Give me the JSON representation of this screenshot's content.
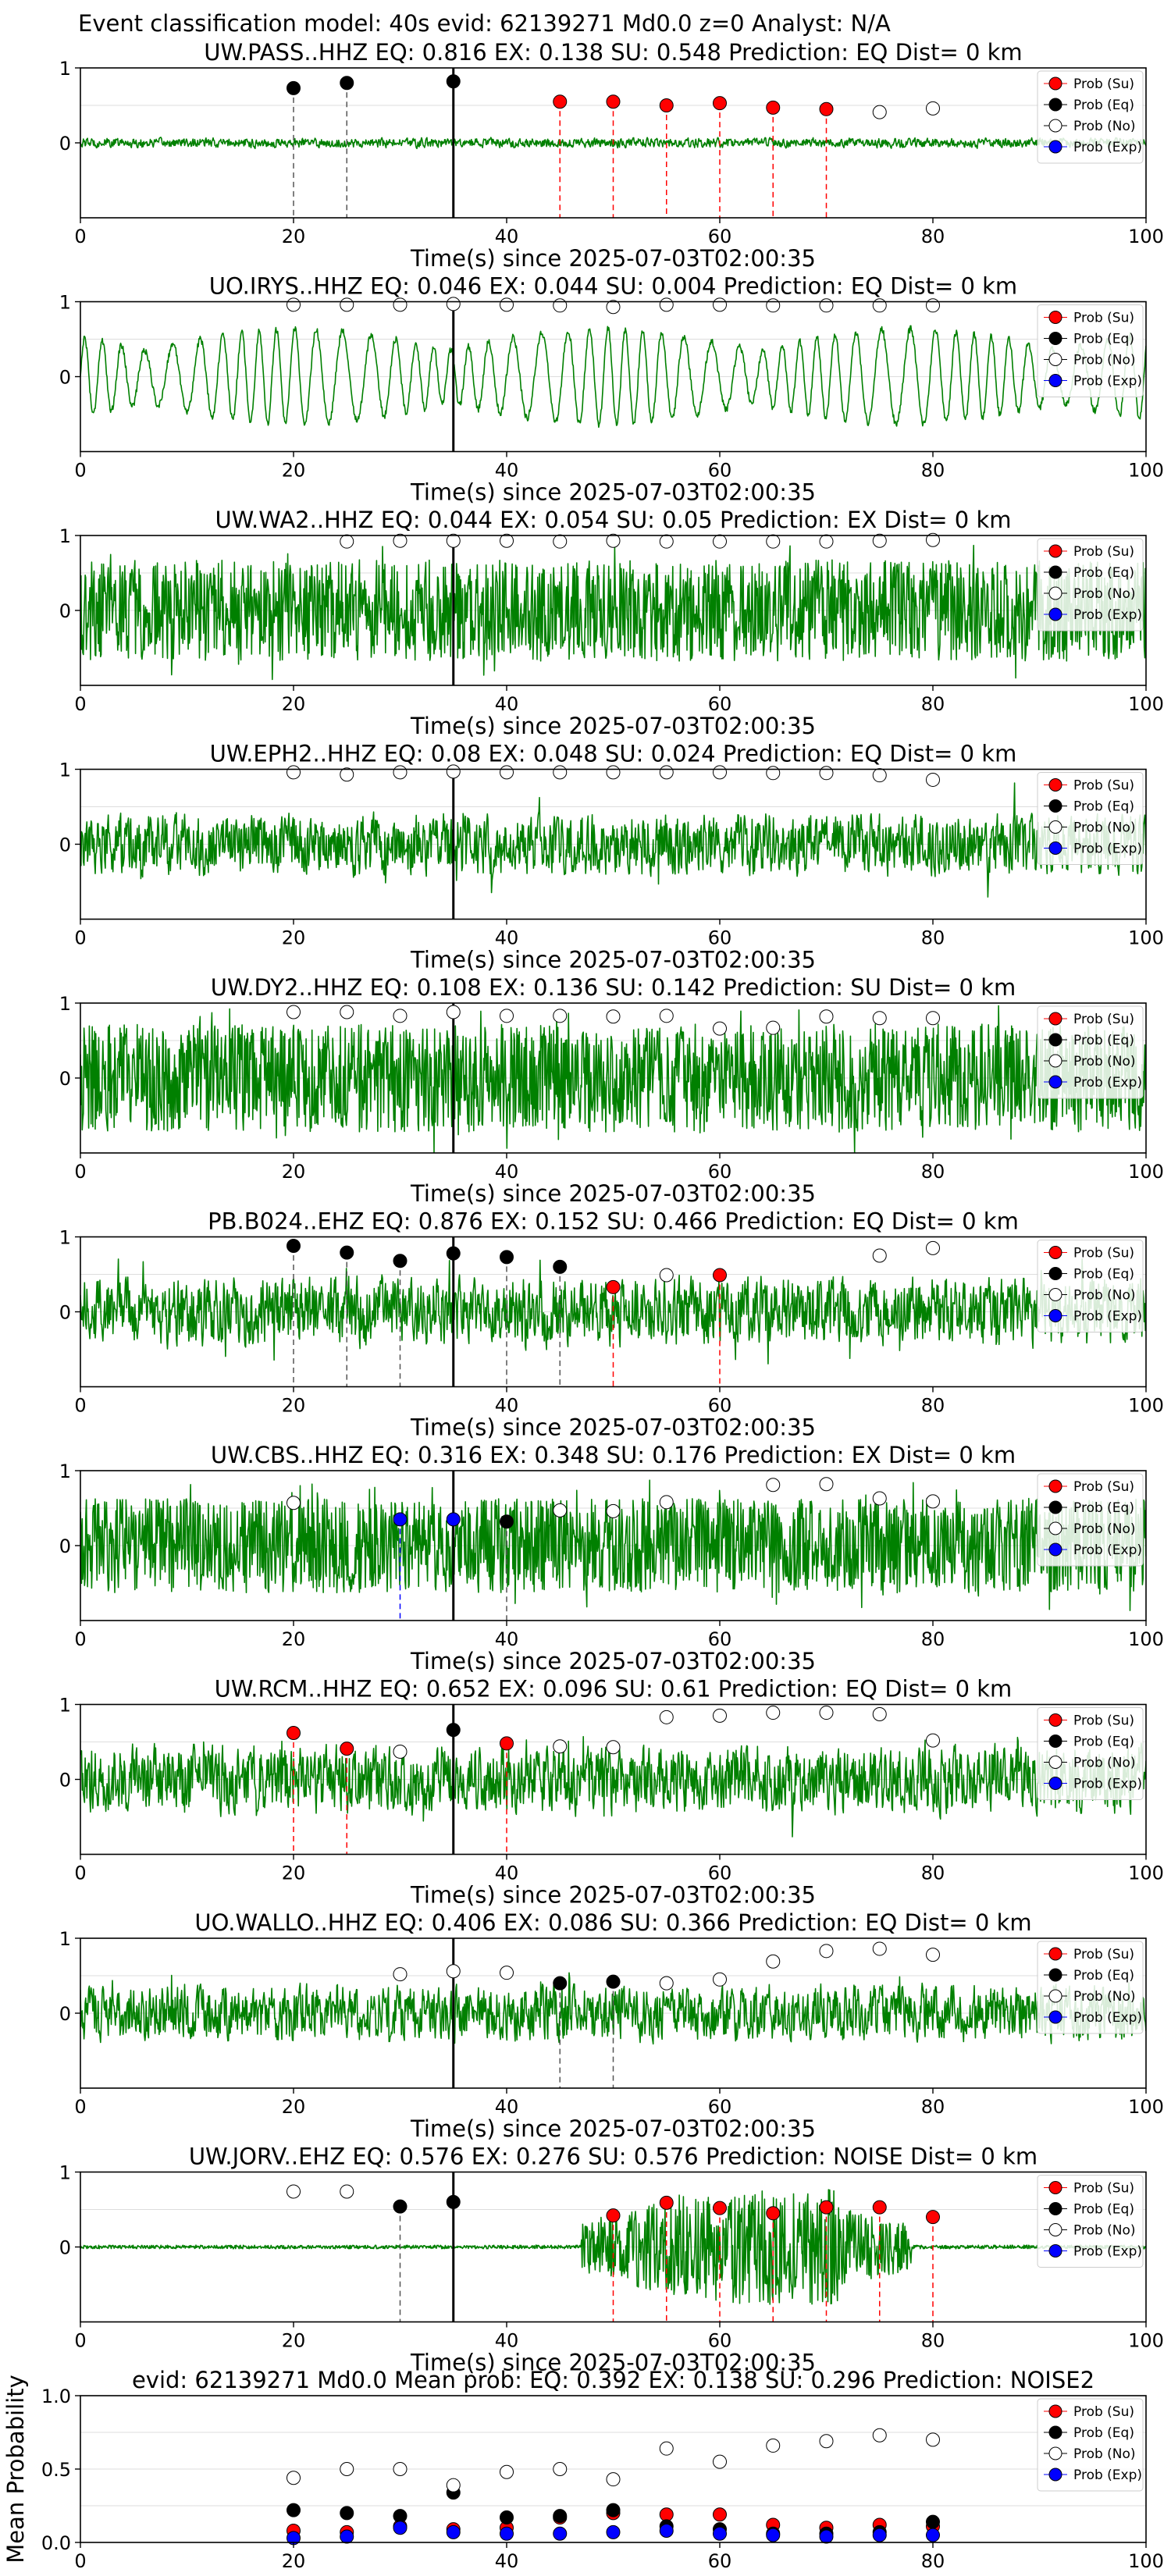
{
  "suptitle": "Event classification model: 40s evid: 62139271 Md0.0 z=0 Analyst: N/A",
  "legend_labels": [
    "Prob (Su)",
    "Prob (Eq)",
    "Prob (No)",
    "Prob (Exp)"
  ],
  "colors": {
    "su": "#ff0000",
    "eq": "#000000",
    "no": "#ffffff",
    "exp": "#0000ff",
    "waveform": "#008000",
    "pick_line": "#000000"
  },
  "chart_data": [
    {
      "type": "line",
      "title": "UW.PASS..HHZ   EQ: 0.816  EX: 0.138  SU: 0.548   Prediction: EQ    Dist= 0 km",
      "xlabel": "Time(s) since 2025-07-03T02:00:35",
      "xlim": [
        0,
        100
      ],
      "ylim": [
        -1,
        1
      ],
      "xticks": [
        0,
        20,
        40,
        60,
        80,
        100
      ],
      "yticks": [
        0,
        1
      ],
      "pick_time": 35,
      "waveform_style": "noise_low",
      "waveform_amplitude": 0.12,
      "series": [
        {
          "name": "Prob (Su)",
          "x": [
            45,
            50,
            55,
            60,
            65,
            70
          ],
          "y": [
            0.55,
            0.55,
            0.5,
            0.53,
            0.47,
            0.45
          ]
        },
        {
          "name": "Prob (Eq)",
          "x": [
            20,
            25,
            35
          ],
          "y": [
            0.73,
            0.8,
            0.82
          ]
        },
        {
          "name": "Prob (No)",
          "x": [
            75,
            80
          ],
          "y": [
            0.41,
            0.46
          ]
        },
        {
          "name": "Prob (Exp)",
          "x": [],
          "y": []
        }
      ]
    },
    {
      "type": "line",
      "title": "UO.IRYS..HHZ   EQ: 0.046  EX: 0.044  SU: 0.004   Prediction: EQ    Dist= 0 km",
      "xlabel": "Time(s) since 2025-07-03T02:00:35",
      "xlim": [
        0,
        100
      ],
      "ylim": [
        -1,
        1
      ],
      "xticks": [
        0,
        20,
        40,
        60,
        80,
        100
      ],
      "yticks": [
        0,
        1
      ],
      "pick_time": 35,
      "waveform_style": "oscillating",
      "waveform_amplitude": 0.75,
      "series": [
        {
          "name": "Prob (Su)",
          "x": [],
          "y": []
        },
        {
          "name": "Prob (Eq)",
          "x": [],
          "y": []
        },
        {
          "name": "Prob (No)",
          "x": [
            20,
            25,
            30,
            35,
            40,
            45,
            50,
            55,
            60,
            65,
            70,
            75,
            80
          ],
          "y": [
            0.96,
            0.96,
            0.96,
            0.97,
            0.96,
            0.95,
            0.93,
            0.96,
            0.96,
            0.95,
            0.95,
            0.95,
            0.95
          ]
        },
        {
          "name": "Prob (Exp)",
          "x": [],
          "y": []
        }
      ]
    },
    {
      "type": "line",
      "title": "UW.WA2..HHZ   EQ: 0.044  EX: 0.054  SU: 0.05   Prediction: EX    Dist= 0 km",
      "xlabel": "Time(s) since 2025-07-03T02:00:35",
      "xlim": [
        0,
        100
      ],
      "ylim": [
        -1,
        1
      ],
      "xticks": [
        0,
        20,
        40,
        60,
        80,
        100
      ],
      "yticks": [
        0,
        1
      ],
      "pick_time": 35,
      "waveform_style": "noise_high",
      "waveform_amplitude": 0.75,
      "series": [
        {
          "name": "Prob (Su)",
          "x": [],
          "y": []
        },
        {
          "name": "Prob (Eq)",
          "x": [],
          "y": []
        },
        {
          "name": "Prob (No)",
          "x": [
            25,
            30,
            35,
            40,
            45,
            50,
            55,
            60,
            65,
            70,
            75,
            80
          ],
          "y": [
            0.92,
            0.93,
            0.93,
            0.93,
            0.92,
            0.93,
            0.92,
            0.92,
            0.92,
            0.92,
            0.93,
            0.94
          ]
        },
        {
          "name": "Prob (Exp)",
          "x": [],
          "y": []
        }
      ]
    },
    {
      "type": "line",
      "title": "UW.EPH2..HHZ   EQ: 0.08  EX: 0.048  SU: 0.024   Prediction: EQ    Dist= 0 km",
      "xlabel": "Time(s) since 2025-07-03T02:00:35",
      "xlim": [
        0,
        100
      ],
      "ylim": [
        -1,
        1
      ],
      "xticks": [
        0,
        20,
        40,
        60,
        80,
        100
      ],
      "yticks": [
        0,
        1
      ],
      "pick_time": 35,
      "waveform_style": "noise_mid",
      "waveform_amplitude": 0.5,
      "series": [
        {
          "name": "Prob (Su)",
          "x": [],
          "y": []
        },
        {
          "name": "Prob (Eq)",
          "x": [],
          "y": []
        },
        {
          "name": "Prob (No)",
          "x": [
            20,
            25,
            30,
            35,
            40,
            45,
            50,
            55,
            60,
            65,
            70,
            75,
            80
          ],
          "y": [
            0.96,
            0.93,
            0.96,
            0.97,
            0.96,
            0.96,
            0.96,
            0.96,
            0.96,
            0.95,
            0.95,
            0.92,
            0.86
          ]
        },
        {
          "name": "Prob (Exp)",
          "x": [],
          "y": []
        }
      ]
    },
    {
      "type": "line",
      "title": "UW.DY2..HHZ   EQ: 0.108  EX: 0.136  SU: 0.142   Prediction: SU    Dist= 0 km",
      "xlabel": "Time(s) since 2025-07-03T02:00:35",
      "xlim": [
        0,
        100
      ],
      "ylim": [
        -1,
        1
      ],
      "xticks": [
        0,
        20,
        40,
        60,
        80,
        100
      ],
      "yticks": [
        0,
        1
      ],
      "pick_time": 35,
      "waveform_style": "noise_high",
      "waveform_amplitude": 0.8,
      "series": [
        {
          "name": "Prob (Su)",
          "x": [],
          "y": []
        },
        {
          "name": "Prob (Eq)",
          "x": [],
          "y": []
        },
        {
          "name": "Prob (No)",
          "x": [
            20,
            25,
            30,
            35,
            40,
            45,
            50,
            55,
            60,
            65,
            70,
            75,
            80
          ],
          "y": [
            0.88,
            0.88,
            0.83,
            0.88,
            0.83,
            0.83,
            0.82,
            0.83,
            0.66,
            0.67,
            0.82,
            0.8,
            0.8
          ]
        },
        {
          "name": "Prob (Exp)",
          "x": [],
          "y": []
        }
      ]
    },
    {
      "type": "line",
      "title": "PB.B024..EHZ   EQ: 0.876  EX: 0.152  SU: 0.466   Prediction: EQ    Dist= 0 km",
      "xlabel": "Time(s) since 2025-07-03T02:00:35",
      "xlim": [
        0,
        100
      ],
      "ylim": [
        -1,
        1
      ],
      "xticks": [
        0,
        20,
        40,
        60,
        80,
        100
      ],
      "yticks": [
        0,
        1
      ],
      "pick_time": 35,
      "waveform_style": "noise_mid",
      "waveform_amplitude": 0.55,
      "series": [
        {
          "name": "Prob (Su)",
          "x": [
            50,
            60
          ],
          "y": [
            0.33,
            0.49
          ]
        },
        {
          "name": "Prob (Eq)",
          "x": [
            20,
            25,
            30,
            35,
            40,
            45
          ],
          "y": [
            0.88,
            0.79,
            0.68,
            0.78,
            0.73,
            0.6
          ]
        },
        {
          "name": "Prob (No)",
          "x": [
            55,
            75,
            80
          ],
          "y": [
            0.49,
            0.75,
            0.85
          ]
        },
        {
          "name": "Prob (Exp)",
          "x": [],
          "y": []
        }
      ]
    },
    {
      "type": "line",
      "title": "UW.CBS..HHZ   EQ: 0.316  EX: 0.348  SU: 0.176   Prediction: EX    Dist= 0 km",
      "xlabel": "Time(s) since 2025-07-03T02:00:35",
      "xlim": [
        0,
        100
      ],
      "ylim": [
        -1,
        1
      ],
      "xticks": [
        0,
        20,
        40,
        60,
        80,
        100
      ],
      "yticks": [
        0,
        1
      ],
      "pick_time": 35,
      "waveform_style": "noise_high",
      "waveform_amplitude": 0.7,
      "series": [
        {
          "name": "Prob (Su)",
          "x": [],
          "y": []
        },
        {
          "name": "Prob (Eq)",
          "x": [
            40
          ],
          "y": [
            0.32
          ]
        },
        {
          "name": "Prob (No)",
          "x": [
            20,
            45,
            50,
            55,
            65,
            70,
            75,
            80
          ],
          "y": [
            0.57,
            0.47,
            0.46,
            0.58,
            0.81,
            0.82,
            0.63,
            0.59
          ]
        },
        {
          "name": "Prob (Exp)",
          "x": [
            30,
            35
          ],
          "y": [
            0.35,
            0.35
          ]
        }
      ]
    },
    {
      "type": "line",
      "title": "UW.RCM..HHZ   EQ: 0.652  EX: 0.096  SU: 0.61   Prediction: EQ    Dist= 0 km",
      "xlabel": "Time(s) since 2025-07-03T02:00:35",
      "xlim": [
        0,
        100
      ],
      "ylim": [
        -1,
        1
      ],
      "xticks": [
        0,
        20,
        40,
        60,
        80,
        100
      ],
      "yticks": [
        0,
        1
      ],
      "pick_time": 35,
      "waveform_style": "noise_mid",
      "waveform_amplitude": 0.55,
      "series": [
        {
          "name": "Prob (Su)",
          "x": [
            20,
            25,
            40
          ],
          "y": [
            0.62,
            0.41,
            0.48
          ]
        },
        {
          "name": "Prob (Eq)",
          "x": [
            35
          ],
          "y": [
            0.66
          ]
        },
        {
          "name": "Prob (No)",
          "x": [
            30,
            45,
            50,
            55,
            60,
            65,
            70,
            75,
            80
          ],
          "y": [
            0.37,
            0.44,
            0.43,
            0.83,
            0.85,
            0.89,
            0.89,
            0.87,
            0.52
          ]
        },
        {
          "name": "Prob (Exp)",
          "x": [],
          "y": []
        }
      ]
    },
    {
      "type": "line",
      "title": "UO.WALLO..HHZ   EQ: 0.406  EX: 0.086  SU: 0.366   Prediction: EQ    Dist= 0 km",
      "xlabel": "Time(s) since 2025-07-03T02:00:35",
      "xlim": [
        0,
        100
      ],
      "ylim": [
        -1,
        1
      ],
      "xticks": [
        0,
        20,
        40,
        60,
        80,
        100
      ],
      "yticks": [
        0,
        1
      ],
      "pick_time": 35,
      "waveform_style": "noise_mid",
      "waveform_amplitude": 0.45,
      "series": [
        {
          "name": "Prob (Su)",
          "x": [],
          "y": []
        },
        {
          "name": "Prob (Eq)",
          "x": [
            45,
            50
          ],
          "y": [
            0.4,
            0.42
          ]
        },
        {
          "name": "Prob (No)",
          "x": [
            30,
            35,
            40,
            55,
            60,
            65,
            70,
            75,
            80
          ],
          "y": [
            0.52,
            0.56,
            0.54,
            0.4,
            0.45,
            0.69,
            0.83,
            0.86,
            0.78
          ]
        },
        {
          "name": "Prob (Exp)",
          "x": [],
          "y": []
        }
      ]
    },
    {
      "type": "line",
      "title": "UW.JORV..EHZ   EQ: 0.576  EX: 0.276  SU: 0.576   Prediction: NOISE    Dist= 0 km",
      "xlabel": "Time(s) since 2025-07-03T02:00:35",
      "xlim": [
        0,
        100
      ],
      "ylim": [
        -1,
        1
      ],
      "xticks": [
        0,
        20,
        40,
        60,
        80,
        100
      ],
      "yticks": [
        0,
        1
      ],
      "pick_time": 35,
      "waveform_style": "burst",
      "waveform_amplitude": 0.8,
      "series": [
        {
          "name": "Prob (Su)",
          "x": [
            50,
            55,
            60,
            65,
            70,
            75,
            80
          ],
          "y": [
            0.42,
            0.59,
            0.52,
            0.45,
            0.53,
            0.53,
            0.4
          ]
        },
        {
          "name": "Prob (Eq)",
          "x": [
            30,
            35
          ],
          "y": [
            0.54,
            0.6
          ]
        },
        {
          "name": "Prob (No)",
          "x": [
            20,
            25
          ],
          "y": [
            0.74,
            0.74
          ]
        },
        {
          "name": "Prob (Exp)",
          "x": [],
          "y": []
        }
      ]
    },
    {
      "type": "scatter",
      "title": "evid: 62139271  Md0.0   Mean prob:   EQ: 0.392  EX: 0.138  SU: 0.296   Prediction: NOISE2",
      "xlabel": "",
      "ylabel": "Mean Probability",
      "xlim": [
        0,
        100
      ],
      "ylim": [
        0,
        1
      ],
      "xticks": [
        0,
        20,
        40,
        60,
        80,
        100
      ],
      "yticks": [
        0.0,
        0.5,
        1.0
      ],
      "ytick_labels": [
        "0.0",
        "0.5",
        "1.0"
      ],
      "series": [
        {
          "name": "Prob (Su)",
          "x": [
            20,
            25,
            30,
            35,
            40,
            45,
            50,
            55,
            60,
            65,
            70,
            75,
            80
          ],
          "y": [
            0.08,
            0.07,
            0.11,
            0.09,
            0.1,
            0.17,
            0.2,
            0.19,
            0.19,
            0.12,
            0.1,
            0.12,
            0.11
          ]
        },
        {
          "name": "Prob (Eq)",
          "x": [
            20,
            25,
            30,
            35,
            40,
            45,
            50,
            55,
            60,
            65,
            70,
            75,
            80
          ],
          "y": [
            0.22,
            0.2,
            0.18,
            0.34,
            0.17,
            0.18,
            0.22,
            0.11,
            0.09,
            0.06,
            0.06,
            0.07,
            0.14
          ]
        },
        {
          "name": "Prob (No)",
          "x": [
            20,
            25,
            30,
            35,
            40,
            45,
            50,
            55,
            60,
            65,
            70,
            75,
            80
          ],
          "y": [
            0.44,
            0.5,
            0.5,
            0.39,
            0.48,
            0.5,
            0.43,
            0.64,
            0.55,
            0.66,
            0.69,
            0.73,
            0.7
          ]
        },
        {
          "name": "Prob (Exp)",
          "x": [
            20,
            25,
            30,
            35,
            40,
            45,
            50,
            55,
            60,
            65,
            70,
            75,
            80
          ],
          "y": [
            0.03,
            0.04,
            0.1,
            0.07,
            0.06,
            0.06,
            0.07,
            0.08,
            0.06,
            0.05,
            0.04,
            0.05,
            0.05
          ]
        }
      ]
    }
  ]
}
